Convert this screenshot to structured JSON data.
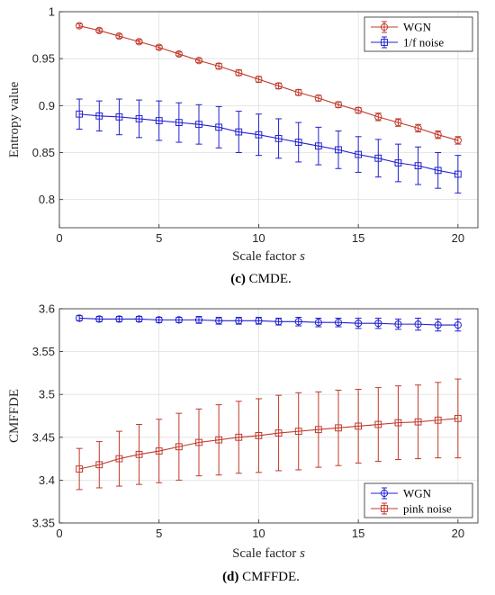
{
  "charts": [
    {
      "caption_letter": "(c)",
      "caption_text": " CMDE.",
      "xlabel": "Scale factor ",
      "xlabel_var": "s",
      "ylabel": "Entropy value",
      "xlim": [
        0,
        21
      ],
      "ylim": [
        0.77,
        1.0
      ],
      "xticks": [
        "0",
        "5",
        "10",
        "15",
        "20"
      ],
      "yticks": [
        "0.8",
        "0.85",
        "0.9",
        "0.95",
        "1"
      ],
      "legend_position": "top-right"
    },
    {
      "caption_letter": "(d)",
      "caption_text": " CMFFDE.",
      "xlabel": "Scale factor ",
      "xlabel_var": "s",
      "ylabel": "CMFFDE",
      "xlim": [
        0,
        21
      ],
      "ylim": [
        3.35,
        3.6
      ],
      "xticks": [
        "0",
        "5",
        "10",
        "15",
        "20"
      ],
      "yticks": [
        "3.35",
        "3.4",
        "3.45",
        "3.5",
        "3.55",
        "3.6"
      ],
      "legend_position": "bottom-right"
    }
  ],
  "chart_data": [
    {
      "type": "line",
      "title": "",
      "xlabel": "Scale factor s",
      "ylabel": "Entropy value",
      "xlim": [
        0,
        21
      ],
      "ylim": [
        0.77,
        1.0
      ],
      "grid": true,
      "legend": "top-right",
      "x": [
        1,
        2,
        3,
        4,
        5,
        6,
        7,
        8,
        9,
        10,
        11,
        12,
        13,
        14,
        15,
        16,
        17,
        18,
        19,
        20
      ],
      "series": [
        {
          "name": "WGN",
          "color": "#c0392b",
          "marker": "circle",
          "values": [
            0.985,
            0.98,
            0.974,
            0.968,
            0.962,
            0.955,
            0.948,
            0.942,
            0.935,
            0.928,
            0.921,
            0.914,
            0.908,
            0.901,
            0.895,
            0.888,
            0.882,
            0.876,
            0.869,
            0.863
          ],
          "errors": [
            0.002,
            0.002,
            0.002,
            0.002,
            0.002,
            0.002,
            0.002,
            0.003,
            0.003,
            0.003,
            0.003,
            0.003,
            0.003,
            0.003,
            0.003,
            0.004,
            0.004,
            0.004,
            0.004,
            0.004
          ]
        },
        {
          "name": "1/f noise",
          "color": "#2020d0",
          "marker": "square",
          "values": [
            0.891,
            0.889,
            0.888,
            0.886,
            0.884,
            0.882,
            0.88,
            0.877,
            0.872,
            0.869,
            0.865,
            0.861,
            0.857,
            0.853,
            0.848,
            0.844,
            0.839,
            0.836,
            0.831,
            0.827
          ],
          "errors": [
            0.016,
            0.016,
            0.019,
            0.02,
            0.021,
            0.021,
            0.021,
            0.022,
            0.022,
            0.022,
            0.021,
            0.021,
            0.02,
            0.02,
            0.019,
            0.02,
            0.02,
            0.02,
            0.019,
            0.02
          ]
        }
      ]
    },
    {
      "type": "line",
      "title": "",
      "xlabel": "Scale factor s",
      "ylabel": "CMFFDE",
      "xlim": [
        0,
        21
      ],
      "ylim": [
        3.35,
        3.6
      ],
      "grid": true,
      "legend": "bottom-right",
      "x": [
        1,
        2,
        3,
        4,
        5,
        6,
        7,
        8,
        9,
        10,
        11,
        12,
        13,
        14,
        15,
        16,
        17,
        18,
        19,
        20
      ],
      "series": [
        {
          "name": "WGN",
          "color": "#2020d0",
          "marker": "circle",
          "values": [
            3.589,
            3.588,
            3.588,
            3.588,
            3.587,
            3.587,
            3.587,
            3.586,
            3.586,
            3.586,
            3.585,
            3.585,
            3.584,
            3.584,
            3.583,
            3.583,
            3.582,
            3.582,
            3.581,
            3.581
          ],
          "errors": [
            0.003,
            0.003,
            0.003,
            0.003,
            0.003,
            0.003,
            0.004,
            0.004,
            0.004,
            0.004,
            0.004,
            0.005,
            0.005,
            0.005,
            0.006,
            0.006,
            0.006,
            0.007,
            0.007,
            0.007
          ]
        },
        {
          "name": "pink noise",
          "color": "#c0392b",
          "marker": "square",
          "values": [
            3.413,
            3.418,
            3.425,
            3.43,
            3.434,
            3.439,
            3.444,
            3.447,
            3.45,
            3.452,
            3.455,
            3.457,
            3.459,
            3.461,
            3.463,
            3.465,
            3.467,
            3.468,
            3.47,
            3.472
          ],
          "errors": [
            0.024,
            0.027,
            0.032,
            0.035,
            0.037,
            0.039,
            0.039,
            0.041,
            0.042,
            0.043,
            0.044,
            0.045,
            0.044,
            0.044,
            0.043,
            0.043,
            0.043,
            0.043,
            0.044,
            0.046
          ]
        }
      ]
    }
  ]
}
